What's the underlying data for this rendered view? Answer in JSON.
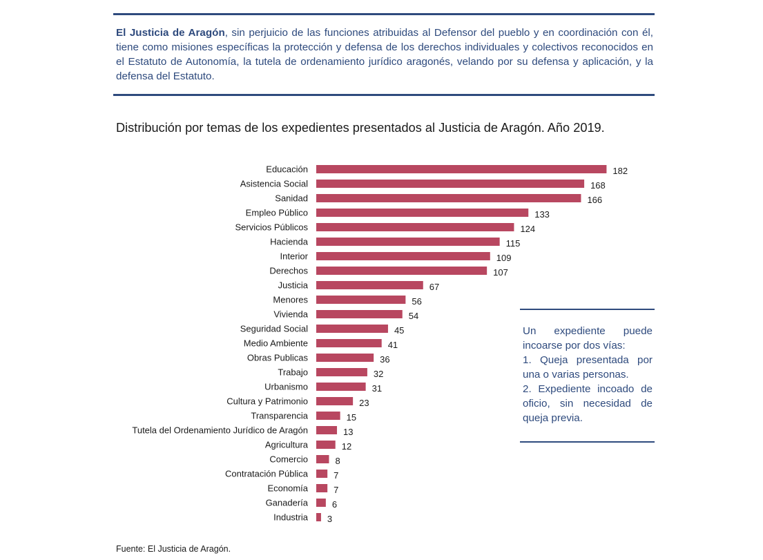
{
  "intro": {
    "bold": "El Justicia de Aragón",
    "text": ", sin perjuicio de las funciones atribuidas al Defensor del pueblo y en coordinación con él, tiene como misiones específicas la protección y defensa de los derechos individuales y colectivos reconocidos en el Estatuto de Autonomía, la tutela de ordenamiento jurídico aragonés, velando por su defensa y aplicación, y la defensa del Estatuto."
  },
  "chart_title": "Distribución por temas de los expedientes presentados al Justicia de Aragón. Año 2019.",
  "note": {
    "line1": "Un expediente puede incoarse por dos vías:",
    "line2": "1. Queja presentada por una o varias personas.",
    "line3": "2. Expediente incoado de oficio, sin necesidad de queja previa."
  },
  "source": "Fuente: El Justicia de Aragón.",
  "colors": {
    "bar": "#b84760",
    "rule": "#2e4a7d",
    "text_blue": "#2e4a7d"
  },
  "chart_data": {
    "type": "bar",
    "orientation": "horizontal",
    "title": "Distribución por temas de los expedientes presentados al Justicia de Aragón. Año 2019.",
    "xlabel": "",
    "ylabel": "",
    "grid": false,
    "legend": "none",
    "categories": [
      "Educación",
      "Asistencia Social",
      "Sanidad",
      "Empleo Público",
      "Servicios Públicos",
      "Hacienda",
      "Interior",
      "Derechos",
      "Justicia",
      "Menores",
      "Vivienda",
      "Seguridad Social",
      "Medio Ambiente",
      "Obras Publicas",
      "Trabajo",
      "Urbanismo",
      "Cultura y Patrimonio",
      "Transparencia",
      "Tutela del Ordenamiento Jurídico de Aragón",
      "Agricultura",
      "Comercio",
      "Contratación Pública",
      "Economía",
      "Ganadería",
      "Industria"
    ],
    "values": [
      182,
      168,
      166,
      133,
      124,
      115,
      109,
      107,
      67,
      56,
      54,
      45,
      41,
      36,
      32,
      31,
      23,
      15,
      13,
      12,
      8,
      7,
      7,
      6,
      3
    ]
  }
}
